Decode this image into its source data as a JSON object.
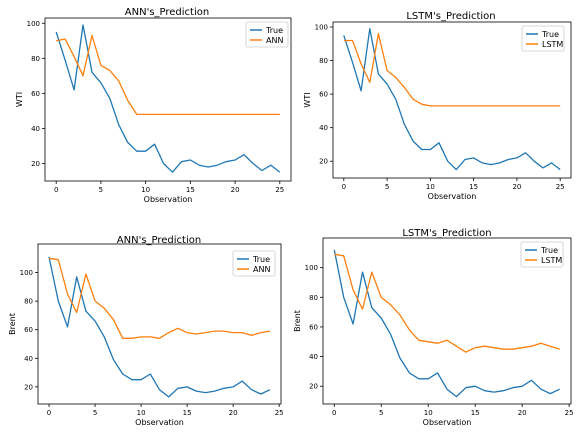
{
  "chart_data": [
    {
      "type": "line",
      "title": "ANN's_Prediction",
      "xlabel": "Observation",
      "ylabel": "WTI",
      "xlim": [
        -1.25,
        26.25
      ],
      "ylim": [
        10,
        103
      ],
      "xticks": [
        0,
        5,
        10,
        15,
        20,
        25
      ],
      "yticks": [
        20,
        40,
        60,
        80,
        100
      ],
      "legend_position": "top-right",
      "x": [
        0,
        1,
        2,
        3,
        4,
        5,
        6,
        7,
        8,
        9,
        10,
        11,
        12,
        13,
        14,
        15,
        16,
        17,
        18,
        19,
        20,
        21,
        22,
        23,
        24,
        25
      ],
      "series": [
        {
          "name": "True",
          "color": "#1f77b4",
          "values": [
            95,
            79,
            62,
            99,
            72,
            66,
            57,
            42,
            32,
            27,
            27,
            31,
            20,
            15,
            21,
            22,
            19,
            18,
            19,
            21,
            22,
            25,
            20,
            16,
            19,
            15
          ]
        },
        {
          "name": "ANN",
          "color": "#ff7f0e",
          "values": [
            90,
            91,
            81,
            70,
            93,
            76,
            73,
            67,
            56,
            48,
            48,
            48,
            48,
            48,
            48,
            48,
            48,
            48,
            48,
            48,
            48,
            48,
            48,
            48,
            48,
            48
          ]
        }
      ]
    },
    {
      "type": "line",
      "title": "LSTM's_Prediction",
      "xlabel": "Observation",
      "ylabel": "WTI",
      "xlim": [
        -1.25,
        26.25
      ],
      "ylim": [
        10,
        103
      ],
      "xticks": [
        0,
        5,
        10,
        15,
        20,
        25
      ],
      "yticks": [
        20,
        40,
        60,
        80,
        100
      ],
      "legend_position": "top-right",
      "x": [
        0,
        1,
        2,
        3,
        4,
        5,
        6,
        7,
        8,
        9,
        10,
        11,
        12,
        13,
        14,
        15,
        16,
        17,
        18,
        19,
        20,
        21,
        22,
        23,
        24,
        25
      ],
      "series": [
        {
          "name": "True",
          "color": "#1f77b4",
          "values": [
            95,
            79,
            62,
            99,
            72,
            66,
            57,
            42,
            32,
            27,
            27,
            31,
            20,
            15,
            21,
            22,
            19,
            18,
            19,
            21,
            22,
            25,
            20,
            16,
            19,
            15
          ]
        },
        {
          "name": "LSTM",
          "color": "#ff7f0e",
          "values": [
            92,
            92,
            78,
            67,
            96,
            74,
            70,
            64,
            57,
            54,
            53,
            53,
            53,
            53,
            53,
            53,
            53,
            53,
            53,
            53,
            53,
            53,
            53,
            53,
            53,
            53
          ]
        }
      ]
    },
    {
      "type": "line",
      "title": "ANN's_Prediction",
      "xlabel": "Observation",
      "ylabel": "Brent",
      "xlim": [
        -1.2,
        25.2
      ],
      "ylim": [
        8,
        120
      ],
      "xticks": [
        0,
        5,
        10,
        15,
        20,
        25
      ],
      "yticks": [
        20,
        40,
        60,
        80,
        100
      ],
      "legend_position": "top-right",
      "x": [
        0,
        1,
        2,
        3,
        4,
        5,
        6,
        7,
        8,
        9,
        10,
        11,
        12,
        13,
        14,
        15,
        16,
        17,
        18,
        19,
        20,
        21,
        22,
        23,
        24
      ],
      "series": [
        {
          "name": "True",
          "color": "#1f77b4",
          "values": [
            111,
            80,
            62,
            97,
            73,
            66,
            55,
            39,
            29,
            25,
            25,
            29,
            18,
            13,
            19,
            20,
            17,
            16,
            17,
            19,
            20,
            24,
            18,
            15,
            18
          ]
        },
        {
          "name": "ANN",
          "color": "#ff7f0e",
          "values": [
            110,
            109,
            85,
            72,
            99,
            80,
            75,
            67,
            54,
            54,
            55,
            55,
            54,
            58,
            61,
            58,
            57,
            58,
            59,
            59,
            58,
            58,
            56,
            58,
            59
          ]
        }
      ]
    },
    {
      "type": "line",
      "title": "LSTM's_Prediction",
      "xlabel": "Observation",
      "ylabel": "Brent",
      "xlim": [
        -1.2,
        25.2
      ],
      "ylim": [
        8,
        120
      ],
      "xticks": [
        0,
        5,
        10,
        15,
        20,
        25
      ],
      "yticks": [
        20,
        40,
        60,
        80,
        100
      ],
      "legend_position": "top-right",
      "x": [
        0,
        1,
        2,
        3,
        4,
        5,
        6,
        7,
        8,
        9,
        10,
        11,
        12,
        13,
        14,
        15,
        16,
        17,
        18,
        19,
        20,
        21,
        22,
        23,
        24
      ],
      "series": [
        {
          "name": "True",
          "color": "#1f77b4",
          "values": [
            112,
            80,
            62,
            97,
            73,
            66,
            55,
            39,
            29,
            25,
            25,
            29,
            18,
            13,
            19,
            20,
            17,
            16,
            17,
            19,
            20,
            24,
            18,
            15,
            18
          ]
        },
        {
          "name": "LSTM",
          "color": "#ff7f0e",
          "values": [
            109,
            108,
            85,
            72,
            97,
            80,
            75,
            68,
            58,
            51,
            50,
            49,
            51,
            47,
            43,
            46,
            47,
            46,
            45,
            45,
            46,
            47,
            49,
            47,
            45
          ]
        }
      ]
    }
  ]
}
